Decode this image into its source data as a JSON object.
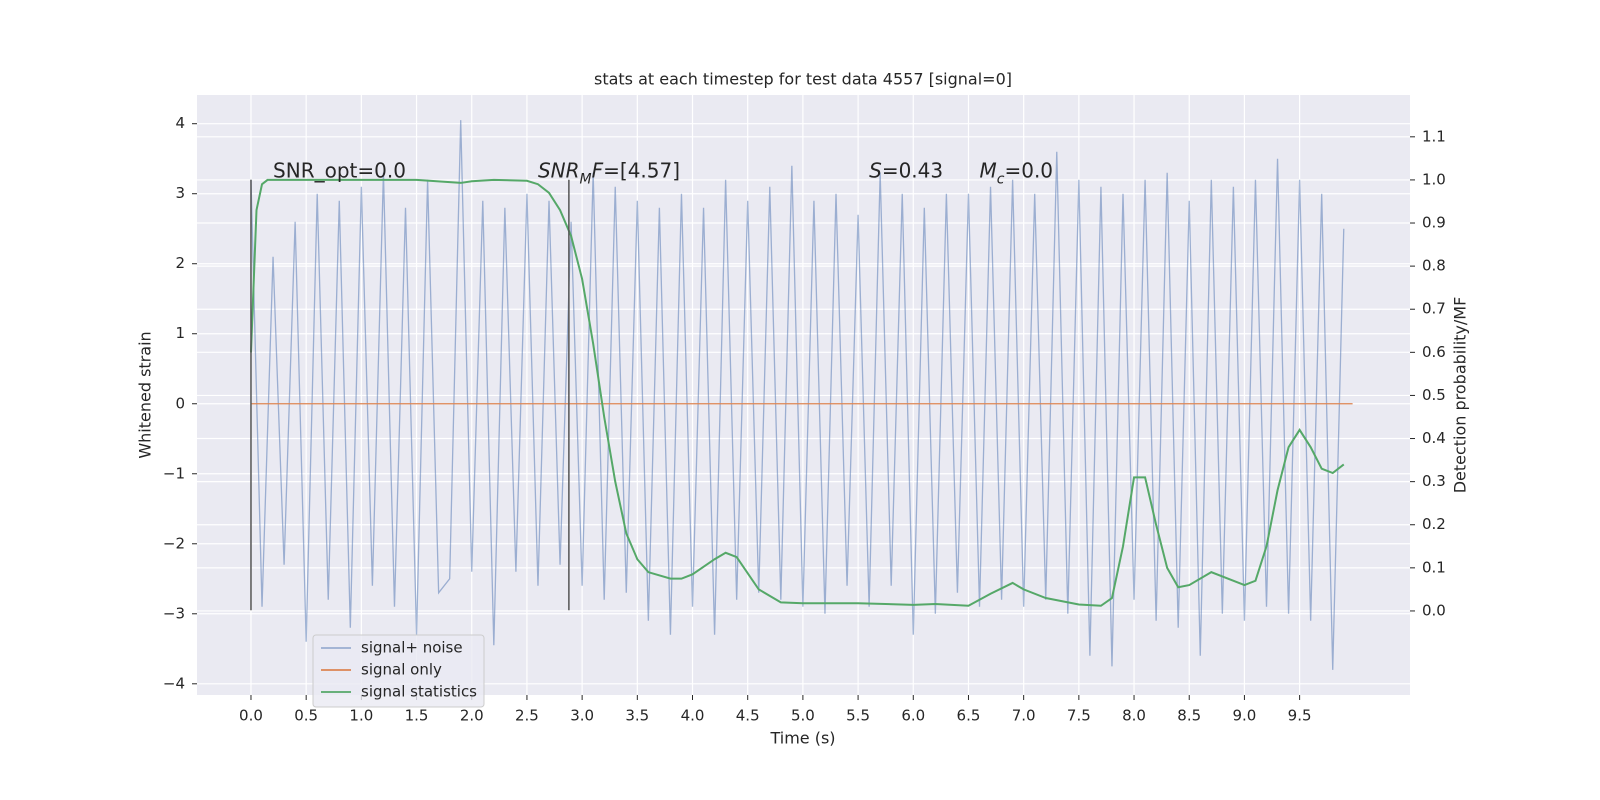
{
  "chart_data": {
    "type": "line",
    "title": "stats at each timestep for test data 4557 [signal=0]",
    "xlabel": "Time (s)",
    "ylabel": "Whitened strain",
    "y2label": "Detection probability/MF",
    "xlim": [
      -0.489,
      10.5
    ],
    "ylim": [
      -4.16,
      4.41
    ],
    "y2lim": [
      -0.195,
      1.197
    ],
    "xticks": [
      {
        "value": 0.0,
        "label": "0.0"
      },
      0.5,
      {
        "value": 1.0,
        "label": "1.0"
      },
      1.5,
      {
        "value": 2.0,
        "label": "2.0"
      },
      2.5,
      {
        "value": 3.0,
        "label": "3.0"
      },
      3.5,
      {
        "value": 4.0,
        "label": "4.0"
      },
      4.5,
      {
        "value": 5.0,
        "label": "5.0"
      },
      5.5,
      {
        "value": 6.0,
        "label": "6.0"
      },
      6.5,
      {
        "value": 7.0,
        "label": "7.0"
      },
      7.5,
      {
        "value": 8.0,
        "label": "8.0"
      },
      8.5,
      {
        "value": 9.0,
        "label": "9.0"
      },
      9.5
    ],
    "yticks": [
      {
        "value": -4,
        "label": "−4"
      },
      {
        "value": -3,
        "label": "−3"
      },
      {
        "value": -2,
        "label": "−2"
      },
      {
        "value": -1,
        "label": "−1"
      },
      0,
      1,
      2,
      3,
      4
    ],
    "y2ticks": [
      {
        "value": 0.0,
        "label": "0.0"
      },
      0.1,
      0.2,
      0.3,
      0.4,
      0.5,
      0.6,
      0.7,
      0.8,
      0.9,
      {
        "value": 1.0,
        "label": "1.0"
      },
      1.1
    ],
    "grid": true,
    "legend": "lower left",
    "vlines": {
      "x": [
        0.0,
        2.88
      ],
      "from": -2.95,
      "to": 3.2,
      "color": "#555555"
    },
    "annotations": [
      {
        "x": 0.2,
        "y": 3.2,
        "parts": [
          {
            "text": "SNR_opt=0.0"
          }
        ]
      },
      {
        "x": 2.6,
        "y": 3.2,
        "parts": [
          {
            "text": "SNR",
            "italic": true
          },
          {
            "text": "M",
            "italic": true,
            "sub": true
          },
          {
            "text": "F",
            "italic": true
          },
          {
            "text": "=[4.57]"
          }
        ]
      },
      {
        "x": 5.6,
        "y": 3.2,
        "parts": [
          {
            "text": "S",
            "italic": true
          },
          {
            "text": "=0.43"
          }
        ]
      },
      {
        "x": 6.6,
        "y": 3.2,
        "parts": [
          {
            "text": "M",
            "italic": true
          },
          {
            "text": "c",
            "italic": true,
            "sub": true
          },
          {
            "text": "=0.0"
          }
        ]
      }
    ],
    "series": [
      {
        "name": "signal+ noise",
        "color": "#4c72b0",
        "opacity": 0.5,
        "x": [
          0.0,
          0.1,
          0.2,
          0.3,
          0.4,
          0.5,
          0.6,
          0.7,
          0.8,
          0.9,
          1.0,
          1.1,
          1.2,
          1.3,
          1.4,
          1.5,
          1.6,
          1.7,
          1.8,
          1.9,
          2.0,
          2.1,
          2.2,
          2.3,
          2.4,
          2.5,
          2.6,
          2.7,
          2.8,
          2.9,
          3.0,
          3.1,
          3.2,
          3.3,
          3.4,
          3.5,
          3.6,
          3.7,
          3.8,
          3.9,
          4.0,
          4.1,
          4.2,
          4.3,
          4.4,
          4.5,
          4.6,
          4.7,
          4.8,
          4.9,
          5.0,
          5.1,
          5.2,
          5.3,
          5.4,
          5.5,
          5.6,
          5.7,
          5.8,
          5.9,
          6.0,
          6.1,
          6.2,
          6.3,
          6.4,
          6.5,
          6.6,
          6.7,
          6.8,
          6.9,
          7.0,
          7.1,
          7.2,
          7.3,
          7.4,
          7.5,
          7.6,
          7.7,
          7.8,
          7.9,
          8.0,
          8.1,
          8.2,
          8.3,
          8.4,
          8.5,
          8.6,
          8.7,
          8.8,
          8.9,
          9.0,
          9.1,
          9.2,
          9.3,
          9.4,
          9.5,
          9.6,
          9.7,
          9.8,
          9.9
        ],
        "values": [
          3.2,
          -2.9,
          2.1,
          -2.3,
          2.6,
          -3.4,
          3.0,
          -2.8,
          2.9,
          -3.2,
          3.1,
          -2.6,
          3.3,
          -2.9,
          2.8,
          -3.3,
          3.2,
          -2.7,
          -2.5,
          4.05,
          -2.4,
          2.9,
          -3.45,
          2.8,
          -2.4,
          3.0,
          -2.6,
          2.9,
          -2.3,
          2.6,
          -2.6,
          3.3,
          -2.8,
          3.1,
          -2.7,
          2.9,
          -3.1,
          2.8,
          -3.3,
          3.0,
          -2.9,
          2.8,
          -3.3,
          3.2,
          -2.8,
          2.9,
          -2.7,
          3.1,
          -2.8,
          3.4,
          -2.9,
          2.9,
          -3.0,
          3.0,
          -2.6,
          2.7,
          -2.9,
          3.3,
          -2.6,
          3.0,
          -3.3,
          2.8,
          -3.0,
          3.0,
          -2.7,
          3.0,
          -2.9,
          3.1,
          -2.8,
          3.2,
          -2.9,
          3.0,
          -2.8,
          3.6,
          -3.0,
          3.2,
          -3.6,
          3.1,
          -3.75,
          3.0,
          -2.8,
          3.2,
          -3.1,
          3.3,
          -3.2,
          2.9,
          -3.6,
          3.2,
          -3.0,
          3.1,
          -3.1,
          3.2,
          -2.9,
          3.5,
          -3.0,
          3.2,
          -3.1,
          3.0,
          -3.8,
          2.5
        ]
      },
      {
        "name": "signal only",
        "color": "#dd8452",
        "x": [
          0.0,
          9.98
        ],
        "values": [
          0,
          0
        ]
      },
      {
        "name": "signal statistics",
        "color": "#55a868",
        "axis": "y2",
        "x": [
          0,
          0.05,
          0.1,
          0.15,
          0.2,
          0.5,
          1.0,
          1.5,
          1.8,
          1.9,
          2.0,
          2.2,
          2.5,
          2.6,
          2.7,
          2.8,
          2.9,
          3.0,
          3.1,
          3.2,
          3.3,
          3.4,
          3.5,
          3.6,
          3.8,
          3.9,
          4.0,
          4.2,
          4.3,
          4.4,
          4.6,
          4.8,
          5.0,
          5.5,
          6.0,
          6.2,
          6.5,
          6.7,
          6.9,
          7.0,
          7.2,
          7.5,
          7.7,
          7.8,
          7.9,
          8.0,
          8.1,
          8.2,
          8.3,
          8.4,
          8.5,
          8.7,
          9.0,
          9.1,
          9.2,
          9.3,
          9.4,
          9.5,
          9.6,
          9.7,
          9.8,
          9.9
        ],
        "values": [
          0.6,
          0.93,
          0.99,
          1.0,
          1.0,
          1.0,
          1.0,
          1.0,
          0.995,
          0.993,
          0.997,
          1.0,
          0.998,
          0.99,
          0.97,
          0.93,
          0.87,
          0.77,
          0.62,
          0.45,
          0.3,
          0.18,
          0.12,
          0.09,
          0.075,
          0.075,
          0.085,
          0.12,
          0.135,
          0.125,
          0.05,
          0.02,
          0.018,
          0.018,
          0.014,
          0.016,
          0.012,
          0.04,
          0.065,
          0.05,
          0.03,
          0.015,
          0.012,
          0.03,
          0.15,
          0.31,
          0.31,
          0.2,
          0.1,
          0.055,
          0.06,
          0.09,
          0.06,
          0.07,
          0.15,
          0.28,
          0.38,
          0.42,
          0.38,
          0.33,
          0.32,
          0.34
        ]
      }
    ]
  }
}
